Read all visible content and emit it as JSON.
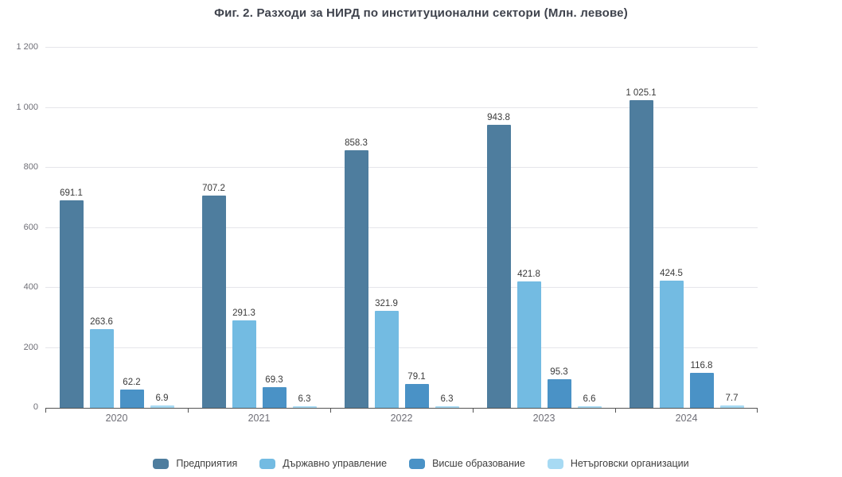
{
  "title": "Фиг. 2. Разходи за НИРД по институционални сектори (Млн. левове)",
  "chart_data": {
    "type": "bar",
    "title": "Фиг. 2. Разходи за НИРД по институционални сектори (Млн. левове)",
    "categories": [
      "2020",
      "2021",
      "2022",
      "2023",
      "2024"
    ],
    "series": [
      {
        "name": "Предприятия",
        "color": "#4e7d9e",
        "values": [
          691.1,
          707.2,
          858.3,
          943.8,
          1025.1
        ],
        "labels": [
          "691.1",
          "707.2",
          "858.3",
          "943.8",
          "1 025.1"
        ]
      },
      {
        "name": "Държавно управление",
        "color": "#73bbe2",
        "values": [
          263.6,
          291.3,
          321.9,
          421.8,
          424.5
        ],
        "labels": [
          "263.6",
          "291.3",
          "321.9",
          "421.8",
          "424.5"
        ]
      },
      {
        "name": "Висше образование",
        "color": "#4a92c6",
        "values": [
          62.2,
          69.3,
          79.1,
          95.3,
          116.8
        ],
        "labels": [
          "62.2",
          "69.3",
          "79.1",
          "95.3",
          "116.8"
        ]
      },
      {
        "name": "Нетърговски организации",
        "color": "#a7daf3",
        "values": [
          6.9,
          6.3,
          6.3,
          6.6,
          7.7
        ],
        "labels": [
          "6.9",
          "6.3",
          "6.3",
          "6.6",
          "7.7"
        ]
      }
    ],
    "xlabel": "",
    "ylabel": "",
    "ylim": [
      0,
      1200
    ],
    "ytick_values": [
      0,
      200,
      400,
      600,
      800,
      1000,
      1200
    ],
    "ytick_labels": [
      "0",
      "200",
      "400",
      "600",
      "800",
      "1 000",
      "1 200"
    ],
    "grid": true,
    "legend_position": "bottom",
    "colors": {
      "gridline": "#e5e5ea",
      "axis_line": "#545454",
      "axis_text": "#6e6e76",
      "data_label_text": "#3a3a3a",
      "title_text": "#3e424c"
    }
  }
}
